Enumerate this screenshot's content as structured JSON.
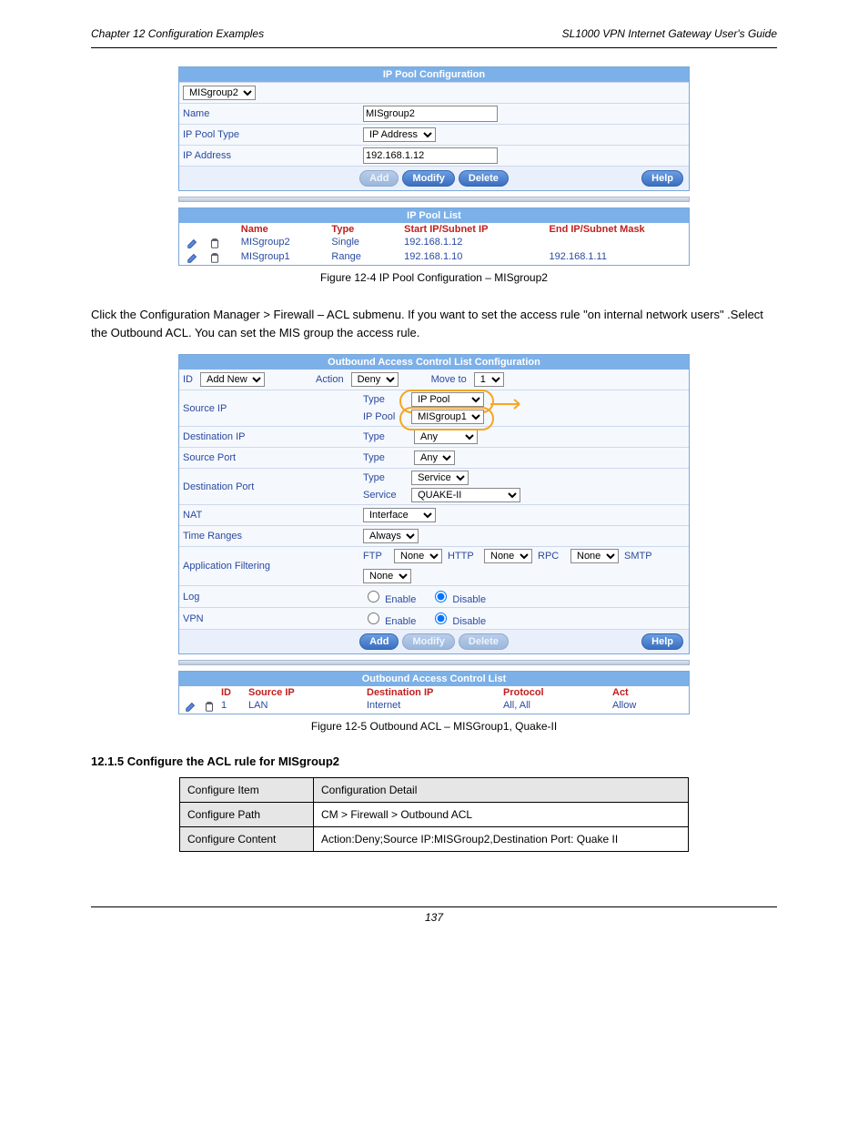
{
  "header": {
    "chapter": "Chapter 12  Configuration Examples",
    "product": "SL1000 VPN Internet Gateway User's Guide"
  },
  "ippool_config": {
    "title": "IP Pool Configuration",
    "selector": "MISgroup2",
    "rows": {
      "name_label": "Name",
      "name_value": "MISgroup2",
      "type_label": "IP Pool Type",
      "type_value": "IP Address",
      "addr_label": "IP Address",
      "addr_value": "192.168.1.12"
    },
    "buttons": {
      "add": "Add",
      "modify": "Modify",
      "delete": "Delete",
      "help": "Help"
    }
  },
  "ippool_list": {
    "title": "IP Pool List",
    "head": {
      "name": "Name",
      "type": "Type",
      "start": "Start IP/Subnet IP",
      "end": "End IP/Subnet Mask"
    },
    "rows": [
      {
        "name": "MISgroup2",
        "type": "Single",
        "start": "192.168.1.12",
        "end": ""
      },
      {
        "name": "MISgroup1",
        "type": "Range",
        "start": "192.168.1.10",
        "end": "192.168.1.11"
      }
    ]
  },
  "fig_a": "Figure 12-4 IP Pool Configuration – MISgroup2",
  "step_text": "Click the Configuration Manager > Firewall – ACL submenu. If you want to set the access rule \"on internal network users\" .Select the Outbound ACL. You can set the MIS group the access rule.",
  "outbound": {
    "title": "Outbound Access Control List Configuration",
    "top": {
      "id_label": "ID",
      "id_value": "Add New",
      "action_label": "Action",
      "action_value": "Deny",
      "move_label": "Move to",
      "move_value": "1"
    },
    "rows": {
      "src_label": "Source IP",
      "src_type_label": "Type",
      "src_type_value": "IP Pool",
      "src_pool_label": "IP Pool",
      "src_pool_value": "MISgroup1",
      "dst_label": "Destination IP",
      "dst_type_label": "Type",
      "dst_type_value": "Any",
      "sport_label": "Source Port",
      "sport_type_label": "Type",
      "sport_type_value": "Any",
      "dport_label": "Destination Port",
      "dport_type_label": "Type",
      "dport_type_value": "Service",
      "dport_service_label": "Service",
      "dport_service_value": "QUAKE-II",
      "nat_label": "NAT",
      "nat_value": "Interface",
      "time_label": "Time Ranges",
      "time_value": "Always",
      "app_label": "Application Filtering",
      "app_ftp_label": "FTP",
      "app_ftp_value": "None",
      "app_http_label": "HTTP",
      "app_http_value": "None",
      "app_rpc_label": "RPC",
      "app_rpc_value": "None",
      "app_smtp_label": "SMTP",
      "app_smtp_value": "None",
      "log_label": "Log",
      "log_enable": "Enable",
      "log_disable": "Disable",
      "vpn_label": "VPN",
      "vpn_enable": "Enable",
      "vpn_disable": "Disable"
    },
    "buttons": {
      "add": "Add",
      "modify": "Modify",
      "delete": "Delete",
      "help": "Help"
    }
  },
  "acl_list": {
    "title": "Outbound Access Control List",
    "head": {
      "id": "ID",
      "src": "Source IP",
      "dst": "Destination IP",
      "proto": "Protocol",
      "act": "Act"
    },
    "rows": [
      {
        "id": "1",
        "src": "LAN",
        "dst": "Internet",
        "proto": "All, All",
        "act": "Allow"
      }
    ]
  },
  "fig_b": "Figure 12-5 Outbound ACL – MISGroup1, Quake-II",
  "section": "12.1.5  Configure the ACL rule for MISgroup2",
  "meta": {
    "head": {
      "item": "Configure Item",
      "detail": "Configuration Detail"
    },
    "rows": [
      {
        "item": "Configure Path",
        "detail": "CM > Firewall > Outbound ACL"
      },
      {
        "item": "Configure Content",
        "detail": "Action:Deny;Source IP:MISGroup2,Destination Port: Quake II"
      }
    ]
  },
  "footer": "137"
}
